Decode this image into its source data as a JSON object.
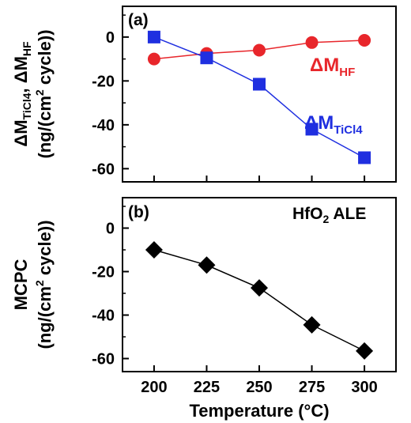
{
  "chart_data": [
    {
      "type": "line",
      "panel_label": "(a)",
      "ylabel_line1": "ΔM_TiCl4, ΔM_HF",
      "ylabel_line2": "(ng/(cm² cycle))",
      "x": [
        200,
        225,
        250,
        275,
        300
      ],
      "xlim": [
        185,
        315
      ],
      "ylim": [
        -66,
        14
      ],
      "yticks": [
        0,
        -20,
        -40,
        -60
      ],
      "grid": false,
      "series": [
        {
          "name": "ΔM_HF",
          "color": "#e8262b",
          "marker": "circle",
          "values": [
            -10,
            -7.5,
            -6,
            -2.5,
            -1.5
          ]
        },
        {
          "name": "ΔM_TiCl4",
          "color": "#1f2fe0",
          "marker": "square",
          "values": [
            0,
            -9.5,
            -21.5,
            -42,
            -55
          ]
        }
      ]
    },
    {
      "type": "line",
      "panel_label": "(b)",
      "annotation": "HfO2 ALE",
      "ylabel_line1": "MCPC",
      "ylabel_line2": "(ng/(cm² cycle))",
      "xlabel": "Temperature (°C)",
      "x": [
        200,
        225,
        250,
        275,
        300
      ],
      "xticks": [
        200,
        225,
        250,
        275,
        300
      ],
      "xlim": [
        185,
        315
      ],
      "ylim": [
        -66,
        14
      ],
      "yticks": [
        0,
        -20,
        -40,
        -60
      ],
      "grid": false,
      "series": [
        {
          "color": "#000000",
          "marker": "diamond",
          "values": [
            -10,
            -17,
            -27.5,
            -44.5,
            -56.5
          ]
        }
      ]
    }
  ],
  "text": {
    "a_label": "(a)",
    "b_label": "(b)",
    "hf_delta": "ΔM",
    "hf_sub": "HF",
    "ti_delta": "ΔM",
    "ti_sub": "TiCl4",
    "ann_b_pre": "HfO",
    "ann_b_sub": "2",
    "ann_b_post": " ALE",
    "ya_l1_a": "ΔM",
    "ya_l1_sub1": "TiCl4",
    "ya_l1_b": ", ΔM",
    "ya_l1_sub2": "HF",
    "ya_l2_a": "(ng/(cm",
    "ya_l2_sup": "2",
    "ya_l2_b": " cycle))",
    "yb_l1": "MCPC",
    "yb_l2_a": "(ng/(cm",
    "yb_l2_sup": "2",
    "yb_l2_b": " cycle))",
    "xlabel": "Temperature (°C)"
  }
}
